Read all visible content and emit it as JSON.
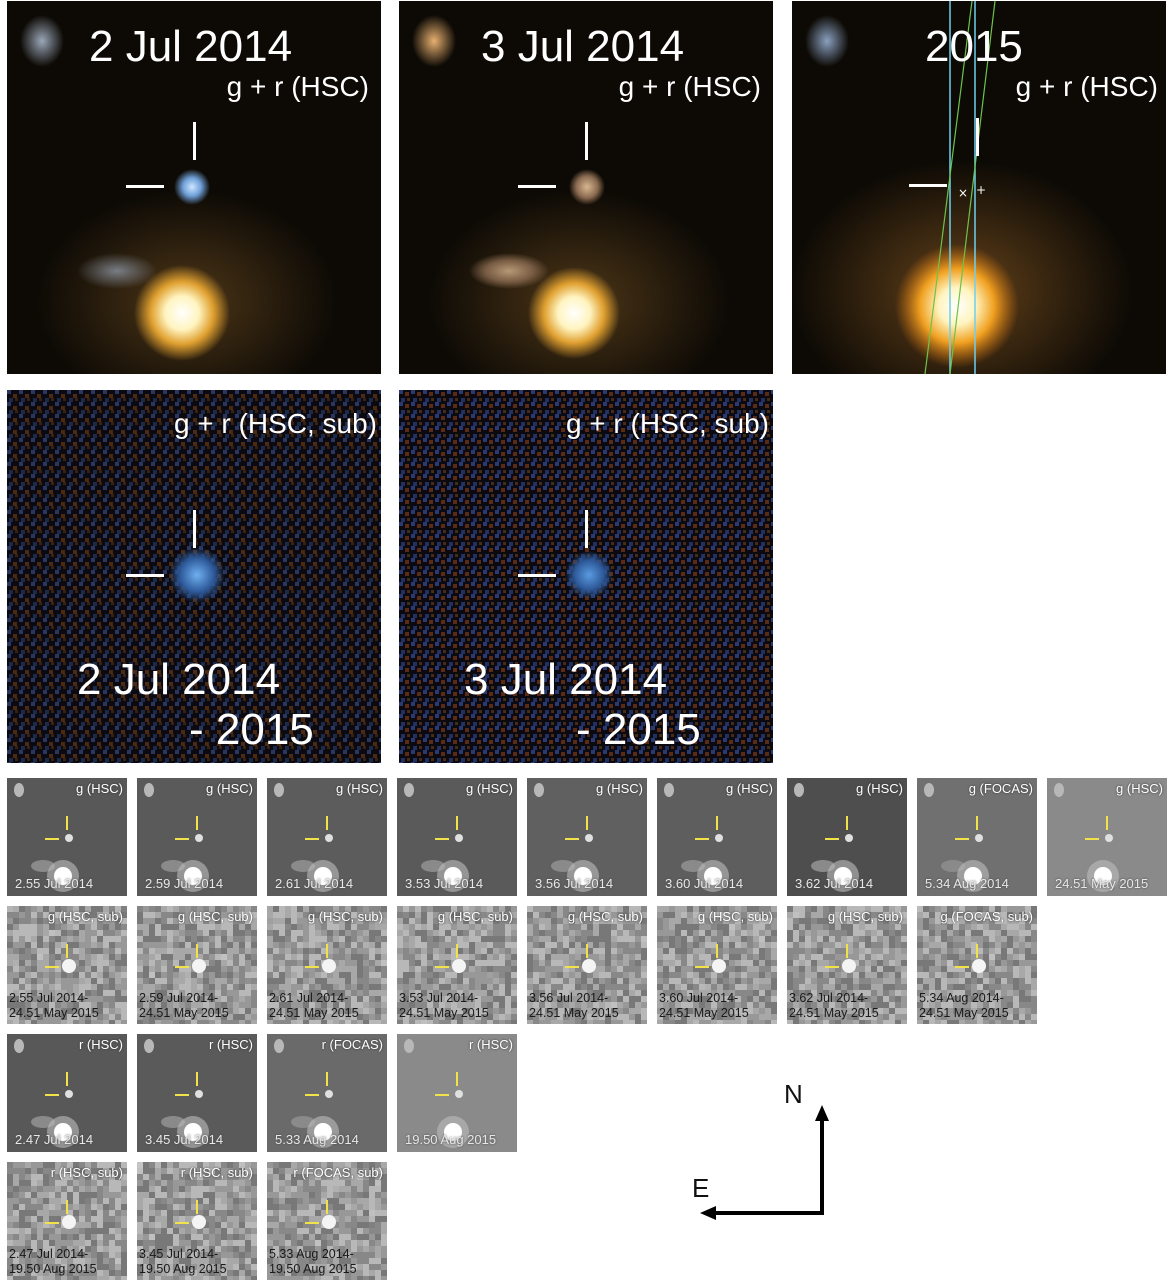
{
  "big_panels": [
    {
      "id": "p1",
      "date": "2 Jul 2014",
      "band": "g + r (HSC)"
    },
    {
      "id": "p2",
      "date": "3 Jul 2014",
      "band": "g + r (HSC)"
    },
    {
      "id": "p3",
      "date": "2015",
      "band": "g + r (HSC)"
    }
  ],
  "sub_panels": [
    {
      "id": "s1",
      "band": "g + r (HSC, sub)",
      "date_line1": "2 Jul 2014",
      "date_line2": "- 2015"
    },
    {
      "id": "s2",
      "band": "g + r (HSC, sub)",
      "date_line1": "3 Jul 2014",
      "date_line2": "- 2015"
    }
  ],
  "g_hsc_row": [
    {
      "band": "g (HSC)",
      "date": "2.55 Jul 2014"
    },
    {
      "band": "g (HSC)",
      "date": "2.59 Jul 2014"
    },
    {
      "band": "g (HSC)",
      "date": "2.61 Jul 2014"
    },
    {
      "band": "g (HSC)",
      "date": "3.53 Jul 2014"
    },
    {
      "band": "g (HSC)",
      "date": "3.56 Jul 2014"
    },
    {
      "band": "g (HSC)",
      "date": "3.60 Jul 2014"
    },
    {
      "band": "g (HSC)",
      "date": "3.62 Jul 2014"
    },
    {
      "band": "g (FOCAS)",
      "date": "5.34 Aug 2014"
    },
    {
      "band": "g (HSC)",
      "date": "24.51 May 2015"
    }
  ],
  "g_sub_row": [
    {
      "band": "g (HSC, sub)",
      "date1": "2.55 Jul 2014-",
      "date2": "24.51 May 2015"
    },
    {
      "band": "g (HSC, sub)",
      "date1": "2.59 Jul 2014-",
      "date2": "24.51 May 2015"
    },
    {
      "band": "g (HSC, sub)",
      "date1": "2.61 Jul 2014-",
      "date2": "24.51 May 2015"
    },
    {
      "band": "g (HSC, sub)",
      "date1": "3.53 Jul 2014-",
      "date2": "24.51 May 2015"
    },
    {
      "band": "g (HSC, sub)",
      "date1": "3.56 Jul 2014-",
      "date2": "24.51 May 2015"
    },
    {
      "band": "g (HSC, sub)",
      "date1": "3.60 Jul 2014-",
      "date2": "24.51 May 2015"
    },
    {
      "band": "g (HSC, sub)",
      "date1": "3.62 Jul 2014-",
      "date2": "24.51 May 2015"
    },
    {
      "band": "g (FOCAS, sub)",
      "date1": "5.34 Aug 2014-",
      "date2": "24.51 May 2015"
    }
  ],
  "r_row": [
    {
      "band": "r (HSC)",
      "date": "2.47 Jul 2014"
    },
    {
      "band": "r (HSC)",
      "date": "3.45 Jul 2014"
    },
    {
      "band": "r (FOCAS)",
      "date": "5.33 Aug 2014"
    },
    {
      "band": "r (HSC)",
      "date": "19.50 Aug 2015"
    }
  ],
  "r_sub_row": [
    {
      "band": "r (HSC, sub)",
      "date1": "2.47 Jul 2014-",
      "date2": "19.50 Aug 2015"
    },
    {
      "band": "r (HSC, sub)",
      "date1": "3.45 Jul 2014-",
      "date2": "19.50 Aug 2015"
    },
    {
      "band": "r (FOCAS, sub)",
      "date1": "5.33 Aug 2014-",
      "date2": "19.50 Aug 2015"
    }
  ],
  "compass": {
    "north": "N",
    "east": "E"
  },
  "colors": {
    "marker": "#ffffff",
    "thumb_marker": "#f2e24a",
    "slit_cyan": "#6fd0ee",
    "slit_green": "#6cc34a"
  }
}
